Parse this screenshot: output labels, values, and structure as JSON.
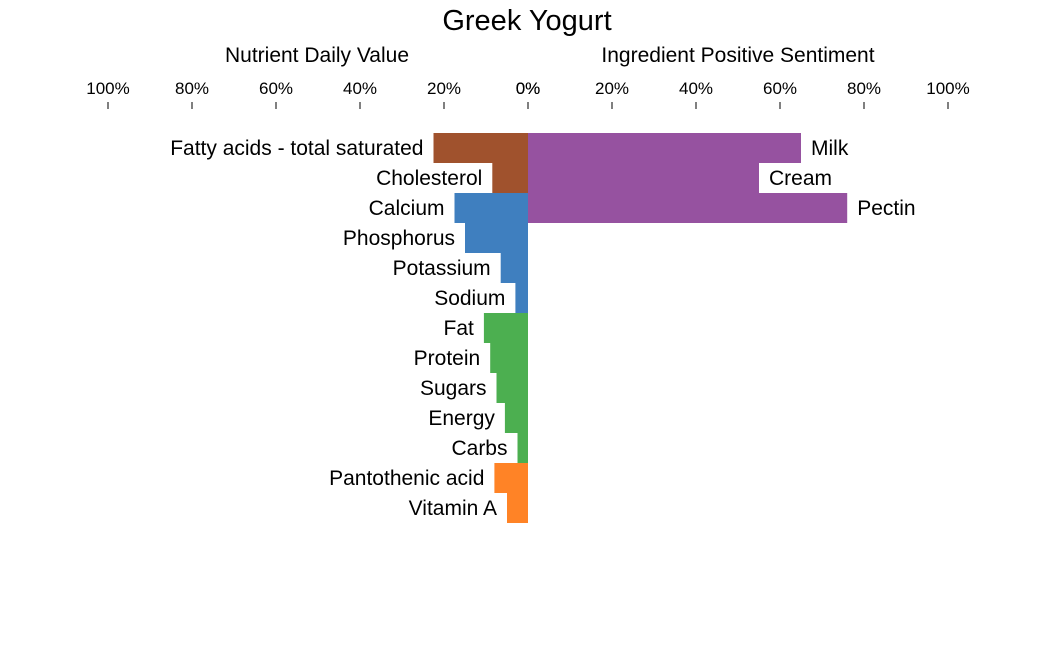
{
  "chart_data": {
    "type": "bar",
    "title": "Greek Yogurt",
    "left_panel": {
      "title": "Nutrient Daily Value",
      "ticks": [
        "100%",
        "80%",
        "60%",
        "40%",
        "20%",
        "0%"
      ],
      "xlim": [
        0,
        100
      ],
      "groups": [
        {
          "color": "#a0522d",
          "items": [
            {
              "label": "Fatty acids - total saturated",
              "value": 22.5
            },
            {
              "label": "Cholesterol",
              "value": 8.5
            }
          ]
        },
        {
          "color": "#3f7fbf",
          "items": [
            {
              "label": "Calcium",
              "value": 17.5
            },
            {
              "label": "Phosphorus",
              "value": 15
            },
            {
              "label": "Potassium",
              "value": 6.5
            },
            {
              "label": "Sodium",
              "value": 3
            }
          ]
        },
        {
          "color": "#4caf50",
          "items": [
            {
              "label": "Fat",
              "value": 10.5
            },
            {
              "label": "Protein",
              "value": 9
            },
            {
              "label": "Sugars",
              "value": 7.5
            },
            {
              "label": "Energy",
              "value": 5.5
            },
            {
              "label": "Carbs",
              "value": 2.5
            }
          ]
        },
        {
          "color": "#ff8326",
          "items": [
            {
              "label": "Pantothenic acid",
              "value": 8
            },
            {
              "label": "Vitamin A",
              "value": 5
            }
          ]
        }
      ]
    },
    "right_panel": {
      "title": "Ingredient Positive Sentiment",
      "ticks": [
        "0%",
        "20%",
        "40%",
        "60%",
        "80%",
        "100%"
      ],
      "xlim": [
        0,
        100
      ],
      "color": "#9652a0",
      "items": [
        {
          "label": "Milk",
          "value": 65
        },
        {
          "label": "Cream",
          "value": 55
        },
        {
          "label": "Pectin",
          "value": 76
        }
      ]
    }
  }
}
